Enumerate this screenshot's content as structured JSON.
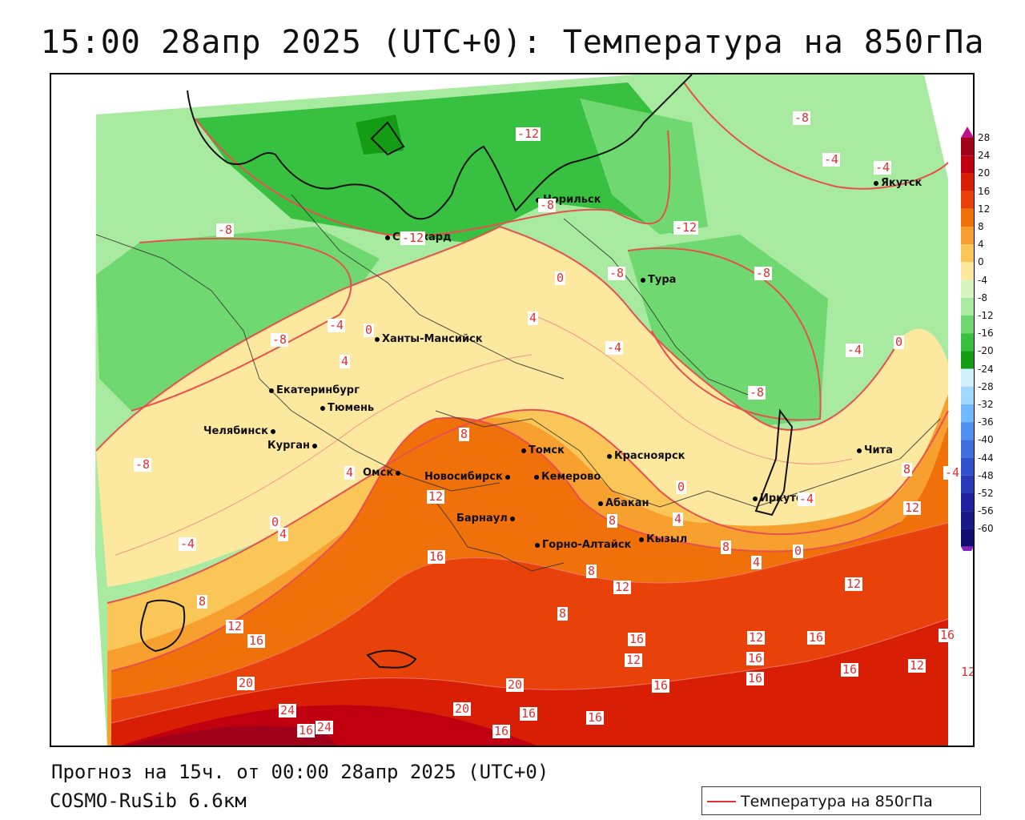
{
  "title": "15:00 28апр 2025 (UTC+0): Температура на 850гПа",
  "footer": {
    "forecast": "Прогноз на 15ч. от 00:00 28апр 2025 (UTC+0)",
    "model": "COSMO-RuSib 6.6км"
  },
  "legend": {
    "label": "Температура на 850гПа",
    "line_color": "#e03030"
  },
  "colorbar": {
    "ticks": [
      "28",
      "24",
      "20",
      "16",
      "12",
      "8",
      "4",
      "0",
      "-4",
      "-8",
      "-12",
      "-16",
      "-20",
      "-24",
      "-28",
      "-32",
      "-36",
      "-40",
      "-44",
      "-48",
      "-52",
      "-56",
      "-60"
    ],
    "colors": [
      "#a0001a",
      "#c00010",
      "#d81e05",
      "#e8420a",
      "#f0700a",
      "#f7a030",
      "#fbc658",
      "#fde8a0",
      "#d8f5c0",
      "#a8eaa0",
      "#70d870",
      "#38c040",
      "#149c14",
      "#d0f0ff",
      "#a0d8ff",
      "#70b8ff",
      "#5090f0",
      "#4070e0",
      "#3050d0",
      "#2838b8",
      "#2020a0",
      "#181888",
      "#100c70"
    ]
  },
  "cities": [
    {
      "name": "Норильск"
    },
    {
      "name": "Салехард"
    },
    {
      "name": "Якутск"
    },
    {
      "name": "Тура"
    },
    {
      "name": "Ханты-Мансийск"
    },
    {
      "name": "Екатеринбург"
    },
    {
      "name": "Тюмень"
    },
    {
      "name": "Челябинск"
    },
    {
      "name": "Курган"
    },
    {
      "name": "Омск"
    },
    {
      "name": "Новосибирск"
    },
    {
      "name": "Томск"
    },
    {
      "name": "Кемерово"
    },
    {
      "name": "Красноярск"
    },
    {
      "name": "Барнаул"
    },
    {
      "name": "Абакан"
    },
    {
      "name": "Кызыл"
    },
    {
      "name": "Горно-Алтайск"
    },
    {
      "name": "Иркутск"
    },
    {
      "name": "Чита"
    }
  ],
  "contour_labels": [
    "-12",
    "-8",
    "-8",
    "-4",
    "-4",
    "-8",
    "-12",
    "-8",
    "-8",
    "-4",
    "0",
    "4",
    "0",
    "-8",
    "-4",
    "-4",
    "0",
    "4",
    "-8",
    "-8",
    "4",
    "0",
    "-4",
    "8",
    "12",
    "8",
    "4",
    "0",
    "4",
    "8",
    "4",
    "0",
    "16",
    "8",
    "8",
    "12",
    "8",
    "16",
    "12",
    "16",
    "12",
    "16",
    "12",
    "16",
    "20",
    "16",
    "16",
    "16",
    "16",
    "12",
    "20",
    "24",
    "16",
    "24",
    "20",
    "16",
    "16",
    "16",
    "12",
    "12",
    "-12",
    "12",
    "-4",
    "-4",
    "-8",
    "8"
  ]
}
